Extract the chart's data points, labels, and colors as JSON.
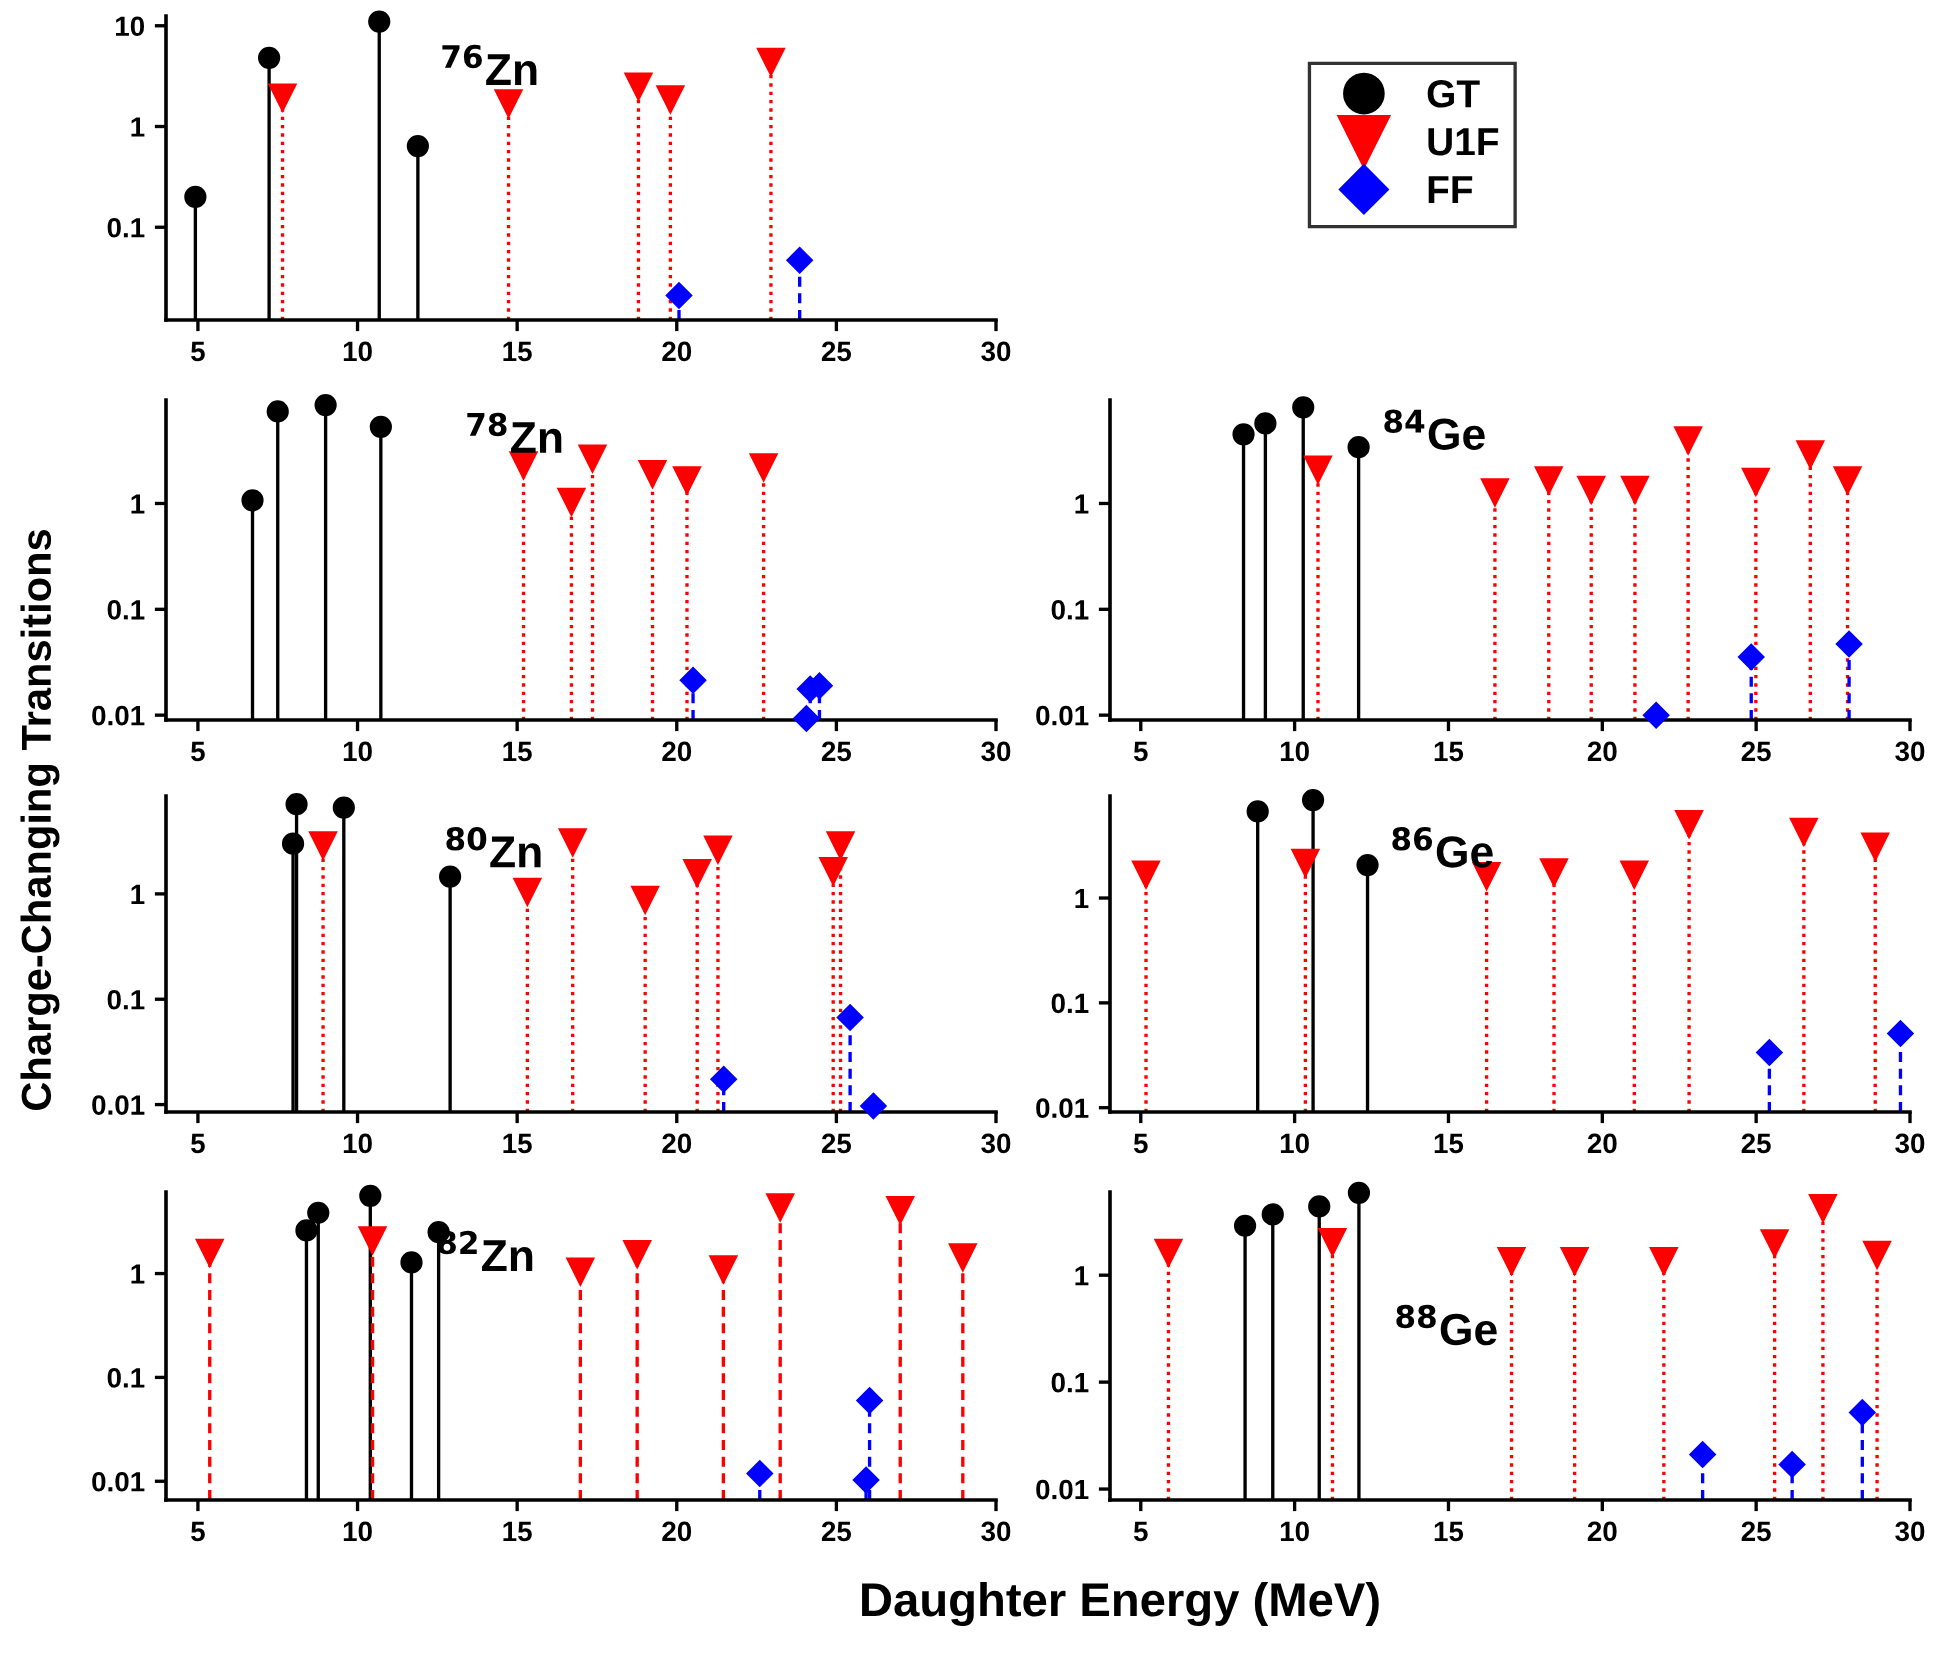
{
  "chart_data": [
    {
      "type": "lollipop",
      "xlabel": "Daughter Energy (MeV)",
      "ylabel": "Charge-Changing Transitions",
      "annotations": [
        "$^{76}$Zn"
      ],
      "legend": "right",
      "log": "y",
      "xlim": [
        4,
        30
      ],
      "xticks": [
        5,
        10,
        15,
        20,
        25,
        30
      ],
      "ylim": [
        0.012,
        12.5
      ],
      "yticks": [
        0.1,
        1,
        10
      ],
      "series": [
        {
          "name": "GT",
          "color": "#000000",
          "marker": "circle",
          "line_style": "solid",
          "x": [
            4.92,
            7.23,
            10.68,
            11.89
          ],
          "values": [
            0.2,
            4.8,
            11,
            0.64
          ]
        },
        {
          "name": "U1F",
          "color": "#ff0000",
          "marker": "triangle",
          "line_style": "dotted",
          "x": [
            7.65,
            14.73,
            18.8,
            19.8,
            22.95
          ],
          "values": [
            1.95,
            1.71,
            2.5,
            1.87,
            4.4
          ]
        },
        {
          "name": "FF",
          "color": "#0000ff",
          "marker": "diamond",
          "line_style": "dashed",
          "x": [
            20.07,
            23.85
          ],
          "values": [
            0.021,
            0.047
          ]
        }
      ]
    },
    {
      "type": "lollipop",
      "annotations": [
        "$^{78}$Zn"
      ],
      "log": "y",
      "xlim": [
        4,
        30
      ],
      "xticks": [
        5,
        10,
        15,
        20,
        25,
        30
      ],
      "ylim": [
        0.009,
        9.5
      ],
      "yticks": [
        0.01,
        0.1,
        1
      ],
      "series": [
        {
          "color": "#000000",
          "marker": "circle",
          "line_style": "solid",
          "x": [
            6.71,
            7.5,
            9.0,
            10.73
          ],
          "values": [
            1.07,
            7.4,
            8.5,
            5.3
          ]
        },
        {
          "color": "#ff0000",
          "marker": "triangle",
          "line_style": "dotted",
          "x": [
            15.2,
            16.7,
            17.36,
            19.24,
            20.32,
            22.72
          ],
          "values": [
            2.3,
            1.04,
            2.67,
            1.9,
            1.66,
            2.2
          ]
        },
        {
          "color": "#0000ff",
          "marker": "diamond",
          "line_style": "dashed",
          "x": [
            20.51,
            24.06,
            24.18,
            24.47
          ],
          "values": [
            0.0214,
            0.0093,
            0.0177,
            0.019
          ]
        }
      ]
    },
    {
      "type": "lollipop",
      "annotations": [
        "$^{84}$Ge"
      ],
      "log": "y",
      "xlim": [
        4,
        30
      ],
      "xticks": [
        5,
        10,
        15,
        20,
        25,
        30
      ],
      "ylim": [
        0.009,
        9.5
      ],
      "yticks": [
        0.01,
        0.1,
        1
      ],
      "series": [
        {
          "color": "#000000",
          "marker": "circle",
          "line_style": "solid",
          "x": [
            8.34,
            9.05,
            10.28,
            12.08
          ],
          "values": [
            4.5,
            5.7,
            8.1,
            3.4
          ]
        },
        {
          "color": "#ff0000",
          "marker": "triangle",
          "line_style": "dotted",
          "x": [
            10.76,
            16.51,
            18.26,
            19.64,
            21.06,
            22.79,
            24.99,
            26.76,
            27.97
          ],
          "values": [
            2.1,
            1.28,
            1.66,
            1.35,
            1.35,
            3.96,
            1.61,
            2.93,
            1.66
          ]
        },
        {
          "color": "#0000ff",
          "marker": "diamond",
          "line_style": "dashed",
          "x": [
            21.75,
            24.84,
            28.02
          ],
          "values": [
            0.01,
            0.0355,
            0.047
          ]
        }
      ]
    },
    {
      "type": "lollipop",
      "annotations": [
        "$^{80}$Zn"
      ],
      "log": "y",
      "xlim": [
        4,
        30
      ],
      "xticks": [
        5,
        10,
        15,
        20,
        25,
        30
      ],
      "ylim": [
        0.0085,
        8.5
      ],
      "yticks": [
        0.01,
        0.1,
        1
      ],
      "series": [
        {
          "color": "#000000",
          "marker": "circle",
          "line_style": "solid",
          "x": [
            7.98,
            8.09,
            9.57,
            12.9
          ],
          "values": [
            3.0,
            7.1,
            6.6,
            1.46
          ]
        },
        {
          "color": "#ff0000",
          "marker": "triangle",
          "line_style": "dotted",
          "x": [
            8.92,
            15.32,
            16.74,
            19.01,
            20.64,
            21.29,
            24.9,
            25.13
          ],
          "values": [
            2.9,
            1.05,
            3.1,
            0.88,
            1.58,
            2.65,
            1.65,
            2.9
          ]
        },
        {
          "color": "#0000ff",
          "marker": "diamond",
          "line_style": "dashed",
          "x": [
            21.47,
            25.43,
            26.16
          ],
          "values": [
            0.0174,
            0.067,
            0.0097
          ]
        }
      ]
    },
    {
      "type": "lollipop",
      "annotations": [
        "$^{86}$Ge"
      ],
      "log": "y",
      "xlim": [
        4,
        30
      ],
      "xticks": [
        5,
        10,
        15,
        20,
        25,
        30
      ],
      "ylim": [
        0.0091,
        9.4
      ],
      "yticks": [
        0.01,
        0.1,
        1
      ],
      "series": [
        {
          "color": "#000000",
          "marker": "circle",
          "line_style": "solid",
          "x": [
            8.8,
            10.6,
            12.37
          ],
          "values": [
            6.7,
            8.6,
            2.06
          ]
        },
        {
          "color": "#ff0000",
          "marker": "triangle",
          "line_style": "dotted",
          "x": [
            5.17,
            10.35,
            16.24,
            18.43,
            21.04,
            22.82,
            26.55,
            28.87
          ],
          "values": [
            1.68,
            2.17,
            1.63,
            1.77,
            1.68,
            5.1,
            4.3,
            3.1
          ]
        },
        {
          "color": "#0000ff",
          "marker": "diamond",
          "line_style": "dashed",
          "x": [
            25.43,
            29.69
          ],
          "values": [
            0.0336,
            0.051
          ]
        }
      ]
    },
    {
      "type": "lollipop",
      "annotations": [
        "$^{82}$Zn"
      ],
      "log": "y",
      "xlim": [
        4,
        30
      ],
      "xticks": [
        5,
        10,
        15,
        20,
        25,
        30
      ],
      "ylim": [
        0.0066,
        6.1
      ],
      "yticks": [
        0.01,
        0.1,
        1
      ],
      "series": [
        {
          "color": "#000000",
          "marker": "circle",
          "line_style": "solid",
          "x": [
            8.4,
            8.77,
            10.4,
            11.69,
            12.54
          ],
          "values": [
            2.6,
            3.85,
            5.6,
            1.28,
            2.5
          ]
        },
        {
          "color": "#ff0000",
          "marker": "triangle",
          "line_style": "dashed",
          "x": [
            5.37,
            10.47,
            16.98,
            18.76,
            21.46,
            23.24,
            27.0,
            28.96
          ],
          "values": [
            1.59,
            2.1,
            1.05,
            1.55,
            1.1,
            4.35,
            4.1,
            1.44
          ]
        },
        {
          "color": "#0000ff",
          "marker": "diamond",
          "line_style": "dashed",
          "x": [
            22.6,
            25.93,
            26.04
          ],
          "values": [
            0.0119,
            0.0103,
            0.06
          ]
        }
      ]
    },
    {
      "type": "lollipop",
      "annotations": [
        "$^{88}$Ge"
      ],
      "log": "y",
      "xlim": [
        4,
        30
      ],
      "xticks": [
        5,
        10,
        15,
        20,
        25,
        30
      ],
      "ylim": [
        0.0079,
        6.0
      ],
      "yticks": [
        0.01,
        0.1,
        1
      ],
      "series": [
        {
          "color": "#000000",
          "marker": "circle",
          "line_style": "solid",
          "x": [
            8.39,
            9.29,
            10.8,
            12.09
          ],
          "values": [
            2.9,
            3.7,
            4.4,
            5.9
          ]
        },
        {
          "color": "#ff0000",
          "marker": "triangle",
          "line_style": "dotted",
          "x": [
            5.9,
            11.23,
            17.05,
            19.1,
            22.0,
            25.6,
            27.17,
            28.93
          ],
          "values": [
            1.63,
            2.05,
            1.36,
            1.36,
            1.36,
            2.0,
            4.25,
            1.56
          ]
        },
        {
          "color": "#0000ff",
          "marker": "diamond",
          "line_style": "dashed",
          "x": [
            23.26,
            26.17,
            28.45
          ],
          "values": [
            0.021,
            0.017,
            0.052
          ]
        }
      ]
    }
  ]
}
